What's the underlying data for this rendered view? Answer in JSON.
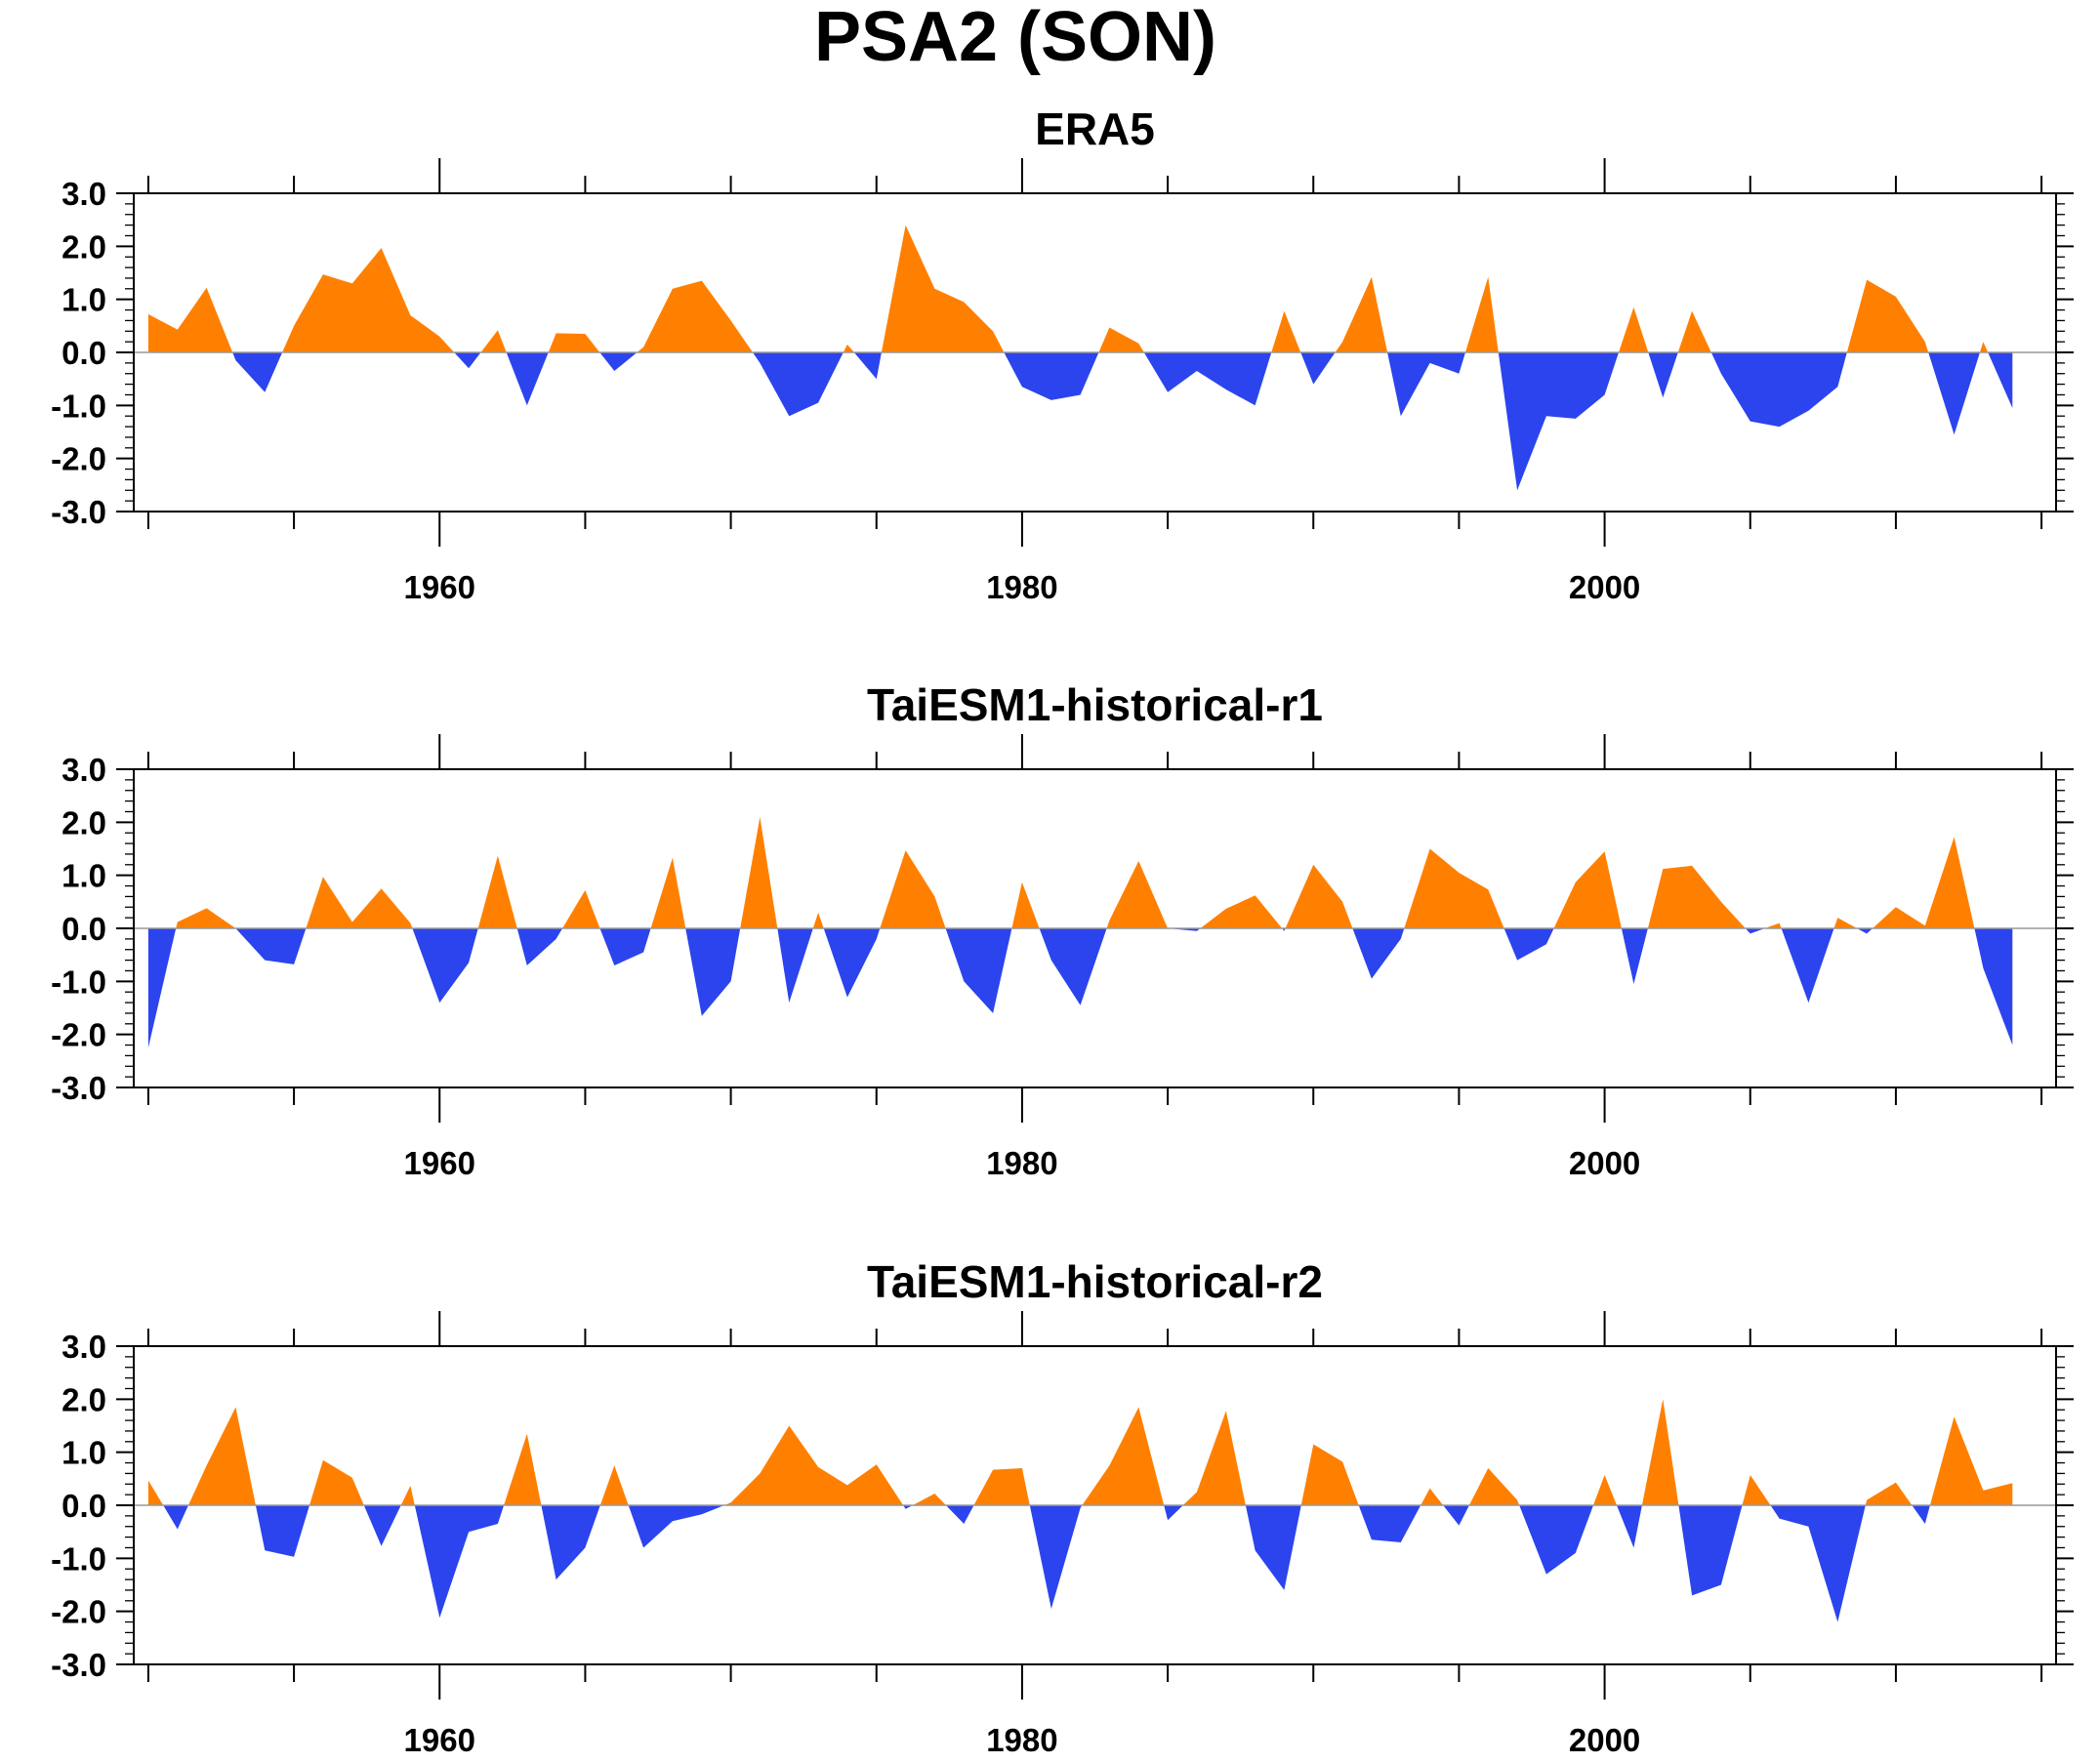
{
  "title": "PSA2 (SON)",
  "colors": {
    "positive": "#ff8000",
    "negative": "#2b44ee",
    "axis": "#000000"
  },
  "chart_data": [
    {
      "type": "area",
      "title": "ERA5",
      "xlabel": "",
      "ylabel": "",
      "xlim": [
        1950,
        2015
      ],
      "ylim": [
        -3.0,
        3.0
      ],
      "yticks": [
        "3.0",
        "2.0",
        "1.0",
        "0.0",
        "-1.0",
        "-2.0",
        "-3.0"
      ],
      "xticks": [
        "1960",
        "1980",
        "2000"
      ],
      "x": [
        1950,
        1951,
        1952,
        1953,
        1954,
        1955,
        1956,
        1957,
        1958,
        1959,
        1960,
        1961,
        1962,
        1963,
        1964,
        1965,
        1966,
        1967,
        1968,
        1969,
        1970,
        1971,
        1972,
        1973,
        1974,
        1975,
        1976,
        1977,
        1978,
        1979,
        1980,
        1981,
        1982,
        1983,
        1984,
        1985,
        1986,
        1987,
        1988,
        1989,
        1990,
        1991,
        1992,
        1993,
        1994,
        1995,
        1996,
        1997,
        1998,
        1999,
        2000,
        2001,
        2002,
        2003,
        2004,
        2005,
        2006,
        2007,
        2008,
        2009,
        2010,
        2011,
        2012,
        2013,
        2014
      ],
      "values": [
        0.72,
        0.43,
        1.22,
        -0.15,
        -0.75,
        0.5,
        1.47,
        1.3,
        1.97,
        0.7,
        0.3,
        -0.3,
        0.42,
        -1.0,
        0.36,
        0.35,
        -0.35,
        0.1,
        1.2,
        1.35,
        0.6,
        -0.2,
        -1.2,
        -0.95,
        0.15,
        -0.5,
        2.4,
        1.2,
        0.95,
        0.4,
        -0.65,
        -0.9,
        -0.8,
        0.47,
        0.17,
        -0.75,
        -0.35,
        -0.7,
        -1.0,
        0.78,
        -0.6,
        0.2,
        1.42,
        -1.2,
        -0.2,
        -0.4,
        1.42,
        -2.6,
        -1.2,
        -1.25,
        -0.8,
        0.85,
        -0.85,
        0.78,
        -0.4,
        -1.3,
        -1.4,
        -1.1,
        -0.65,
        1.37,
        1.05,
        0.2,
        -1.55,
        0.2,
        -1.05
      ]
    },
    {
      "type": "area",
      "title": "TaiESM1-historical-r1",
      "xlabel": "",
      "ylabel": "",
      "xlim": [
        1950,
        2015
      ],
      "ylim": [
        -3.0,
        3.0
      ],
      "yticks": [
        "3.0",
        "2.0",
        "1.0",
        "0.0",
        "-1.0",
        "-2.0",
        "-3.0"
      ],
      "xticks": [
        "1960",
        "1980",
        "2000"
      ],
      "x": [
        1950,
        1951,
        1952,
        1953,
        1954,
        1955,
        1956,
        1957,
        1958,
        1959,
        1960,
        1961,
        1962,
        1963,
        1964,
        1965,
        1966,
        1967,
        1968,
        1969,
        1970,
        1971,
        1972,
        1973,
        1974,
        1975,
        1976,
        1977,
        1978,
        1979,
        1980,
        1981,
        1982,
        1983,
        1984,
        1985,
        1986,
        1987,
        1988,
        1989,
        1990,
        1991,
        1992,
        1993,
        1994,
        1995,
        1996,
        1997,
        1998,
        1999,
        2000,
        2001,
        2002,
        2003,
        2004,
        2005,
        2006,
        2007,
        2008,
        2009,
        2010,
        2011,
        2012,
        2013,
        2014
      ],
      "values": [
        -2.25,
        0.12,
        0.38,
        0.0,
        -0.6,
        -0.68,
        0.97,
        0.12,
        0.75,
        0.1,
        -1.4,
        -0.65,
        1.37,
        -0.7,
        -0.2,
        0.72,
        -0.7,
        -0.45,
        1.33,
        -1.65,
        -1.0,
        2.1,
        -1.4,
        0.3,
        -1.3,
        -0.2,
        1.47,
        0.6,
        -1.0,
        -1.6,
        0.87,
        -0.6,
        -1.45,
        0.15,
        1.27,
        0.0,
        -0.05,
        0.37,
        0.62,
        -0.05,
        1.2,
        0.5,
        -0.95,
        -0.2,
        1.5,
        1.05,
        0.73,
        -0.6,
        -0.3,
        0.87,
        1.45,
        -1.05,
        1.12,
        1.18,
        0.5,
        -0.1,
        0.1,
        -1.4,
        0.2,
        -0.1,
        0.4,
        0.05,
        1.72,
        -0.75,
        -2.2
      ]
    },
    {
      "type": "area",
      "title": "TaiESM1-historical-r2",
      "xlabel": "",
      "ylabel": "",
      "xlim": [
        1950,
        2015
      ],
      "ylim": [
        -3.0,
        3.0
      ],
      "yticks": [
        "3.0",
        "2.0",
        "1.0",
        "0.0",
        "-1.0",
        "-2.0",
        "-3.0"
      ],
      "xticks": [
        "1960",
        "1980",
        "2000"
      ],
      "x": [
        1950,
        1951,
        1952,
        1953,
        1954,
        1955,
        1956,
        1957,
        1958,
        1959,
        1960,
        1961,
        1962,
        1963,
        1964,
        1965,
        1966,
        1967,
        1968,
        1969,
        1970,
        1971,
        1972,
        1973,
        1974,
        1975,
        1976,
        1977,
        1978,
        1979,
        1980,
        1981,
        1982,
        1983,
        1984,
        1985,
        1986,
        1987,
        1988,
        1989,
        1990,
        1991,
        1992,
        1993,
        1994,
        1995,
        1996,
        1997,
        1998,
        1999,
        2000,
        2001,
        2002,
        2003,
        2004,
        2005,
        2006,
        2007,
        2008,
        2009,
        2010,
        2011,
        2012,
        2013,
        2014
      ],
      "values": [
        0.47,
        -0.45,
        0.75,
        1.85,
        -0.85,
        -0.97,
        0.85,
        0.52,
        -0.77,
        0.37,
        -2.12,
        -0.5,
        -0.35,
        1.35,
        -1.4,
        -0.8,
        0.75,
        -0.8,
        -0.3,
        -0.17,
        0.05,
        0.6,
        1.5,
        0.72,
        0.38,
        0.77,
        -0.07,
        0.22,
        -0.35,
        0.67,
        0.7,
        -1.95,
        -0.05,
        0.75,
        1.85,
        -0.28,
        0.25,
        1.78,
        -0.85,
        -1.6,
        1.15,
        0.82,
        -0.65,
        -0.7,
        0.32,
        -0.38,
        0.7,
        0.1,
        -1.3,
        -0.9,
        0.57,
        -0.8,
        2.0,
        -1.7,
        -1.5,
        0.57,
        -0.25,
        -0.4,
        -2.2,
        0.1,
        0.43,
        -0.35,
        1.67,
        0.28,
        0.42
      ]
    }
  ]
}
